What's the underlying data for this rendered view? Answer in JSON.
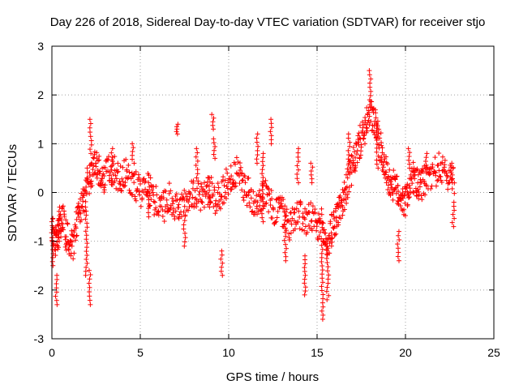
{
  "chart_data": {
    "type": "scatter",
    "title": "Day 226 of 2018, Sidereal Day-to-day VTEC variation (SDTVAR) for receiver stjo",
    "xlabel": "GPS time / hours",
    "ylabel": "SDTVAR / TECUs",
    "xlim": [
      0,
      25
    ],
    "ylim": [
      -3,
      3
    ],
    "x_ticks": [
      0,
      5,
      10,
      15,
      20,
      25
    ],
    "y_ticks": [
      -3,
      -2,
      -1,
      0,
      1,
      2,
      3
    ],
    "x_tick_labels": [
      "0",
      "5",
      "10",
      "15",
      "20",
      "25"
    ],
    "y_tick_labels": [
      "-3",
      "-2",
      "-1",
      "0",
      "1",
      "2",
      "3"
    ],
    "grid": true,
    "marker": "+",
    "series": [
      {
        "name": "SDTVAR",
        "color": "#ff0000",
        "trend": [
          [
            0.0,
            -0.7
          ],
          [
            0.15,
            -0.9
          ],
          [
            0.3,
            -1.1
          ],
          [
            0.4,
            -0.6
          ],
          [
            0.6,
            -0.5
          ],
          [
            0.8,
            -0.9
          ],
          [
            1.0,
            -1.0
          ],
          [
            1.2,
            -1.1
          ],
          [
            1.4,
            -0.7
          ],
          [
            1.6,
            -0.3
          ],
          [
            1.8,
            -0.2
          ],
          [
            2.0,
            0.2
          ],
          [
            2.2,
            0.4
          ],
          [
            2.4,
            0.6
          ],
          [
            2.6,
            0.5
          ],
          [
            2.8,
            0.2
          ],
          [
            3.0,
            0.3
          ],
          [
            3.3,
            0.5
          ],
          [
            3.6,
            0.4
          ],
          [
            3.9,
            0.3
          ],
          [
            4.2,
            0.5
          ],
          [
            4.5,
            0.2
          ],
          [
            4.8,
            0.1
          ],
          [
            5.1,
            0.0
          ],
          [
            5.4,
            0.1
          ],
          [
            5.7,
            -0.1
          ],
          [
            6.0,
            -0.2
          ],
          [
            6.3,
            -0.3
          ],
          [
            6.6,
            -0.1
          ],
          [
            6.9,
            -0.3
          ],
          [
            7.2,
            -0.4
          ],
          [
            7.5,
            -0.2
          ],
          [
            7.8,
            0.0
          ],
          [
            8.1,
            0.0
          ],
          [
            8.4,
            -0.1
          ],
          [
            8.7,
            0.0
          ],
          [
            9.0,
            0.1
          ],
          [
            9.3,
            -0.2
          ],
          [
            9.6,
            0.0
          ],
          [
            9.9,
            0.2
          ],
          [
            10.2,
            0.3
          ],
          [
            10.5,
            0.4
          ],
          [
            10.8,
            0.2
          ],
          [
            11.1,
            0.0
          ],
          [
            11.4,
            -0.2
          ],
          [
            11.7,
            -0.1
          ],
          [
            12.0,
            0.0
          ],
          [
            12.3,
            -0.2
          ],
          [
            12.6,
            -0.4
          ],
          [
            12.9,
            -0.3
          ],
          [
            13.2,
            -0.5
          ],
          [
            13.5,
            -0.7
          ],
          [
            13.8,
            -0.4
          ],
          [
            14.1,
            -0.5
          ],
          [
            14.4,
            -0.6
          ],
          [
            14.7,
            -0.5
          ],
          [
            15.0,
            -0.8
          ],
          [
            15.2,
            -0.6
          ],
          [
            15.4,
            -0.9
          ],
          [
            15.6,
            -1.1
          ],
          [
            15.8,
            -0.8
          ],
          [
            16.0,
            -0.6
          ],
          [
            16.2,
            -0.4
          ],
          [
            16.4,
            -0.2
          ],
          [
            16.6,
            0.0
          ],
          [
            16.8,
            0.3
          ],
          [
            17.0,
            0.5
          ],
          [
            17.2,
            0.8
          ],
          [
            17.4,
            1.0
          ],
          [
            17.6,
            1.2
          ],
          [
            17.8,
            1.4
          ],
          [
            18.0,
            1.6
          ],
          [
            18.2,
            1.5
          ],
          [
            18.4,
            1.2
          ],
          [
            18.6,
            0.9
          ],
          [
            18.8,
            0.6
          ],
          [
            19.0,
            0.3
          ],
          [
            19.2,
            0.2
          ],
          [
            19.4,
            0.1
          ],
          [
            19.6,
            0.0
          ],
          [
            19.8,
            -0.1
          ],
          [
            20.0,
            -0.2
          ],
          [
            20.2,
            0.1
          ],
          [
            20.4,
            0.3
          ],
          [
            20.6,
            0.2
          ],
          [
            20.8,
            0.1
          ],
          [
            21.0,
            0.2
          ],
          [
            21.3,
            0.3
          ],
          [
            21.6,
            0.4
          ],
          [
            21.9,
            0.5
          ],
          [
            22.2,
            0.4
          ],
          [
            22.5,
            0.3
          ],
          [
            22.8,
            0.3
          ]
        ],
        "bursts": [
          [
            0.05,
            -1.5,
            -0.6
          ],
          [
            0.25,
            -2.3,
            -1.7
          ],
          [
            0.45,
            -1.0,
            -0.3
          ],
          [
            1.95,
            -1.7,
            -0.3
          ],
          [
            2.15,
            -2.3,
            -1.6
          ],
          [
            2.2,
            0.8,
            1.5
          ],
          [
            3.4,
            0.2,
            0.9
          ],
          [
            4.6,
            0.6,
            1.0
          ],
          [
            5.5,
            -0.5,
            0.2
          ],
          [
            7.1,
            1.2,
            1.4
          ],
          [
            7.5,
            -1.1,
            -0.4
          ],
          [
            8.2,
            0.3,
            0.9
          ],
          [
            8.9,
            -0.3,
            0.3
          ],
          [
            9.1,
            1.3,
            1.6
          ],
          [
            9.2,
            0.7,
            1.1
          ],
          [
            9.6,
            -1.7,
            -1.2
          ],
          [
            11.6,
            0.6,
            1.2
          ],
          [
            11.9,
            -0.6,
            0.8
          ],
          [
            12.4,
            1.0,
            1.5
          ],
          [
            13.2,
            -1.4,
            -0.4
          ],
          [
            13.9,
            0.2,
            0.9
          ],
          [
            14.3,
            -2.1,
            -1.3
          ],
          [
            14.7,
            0.2,
            0.6
          ],
          [
            15.3,
            -2.6,
            -1.0
          ],
          [
            15.6,
            -2.2,
            -1.1
          ],
          [
            16.8,
            0.6,
            1.2
          ],
          [
            18.0,
            1.9,
            2.5
          ],
          [
            18.4,
            0.5,
            1.4
          ],
          [
            19.6,
            -1.4,
            -0.8
          ],
          [
            20.2,
            0.5,
            0.9
          ],
          [
            21.2,
            0.4,
            0.8
          ],
          [
            22.6,
            0.2,
            0.6
          ],
          [
            22.7,
            -0.7,
            -0.2
          ]
        ]
      }
    ]
  }
}
